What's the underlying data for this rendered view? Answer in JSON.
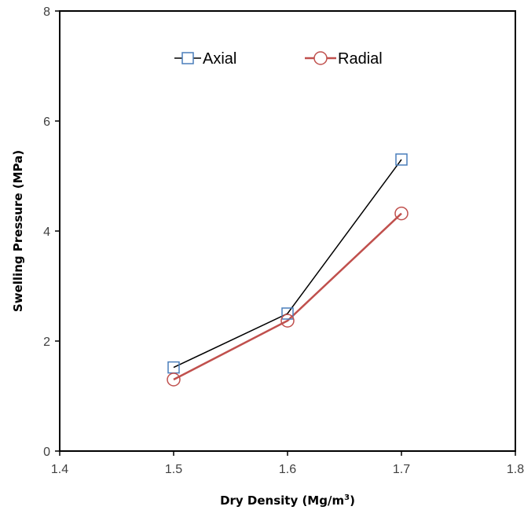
{
  "chart_data": {
    "type": "line",
    "title": "",
    "xlabel": "Dry Density (Mg/m",
    "xlabel_superscript": "3",
    "xlabel_suffix": ")",
    "ylabel": "Swelling Pressure (MPa)",
    "xlim": [
      1.4,
      1.8
    ],
    "ylim": [
      0,
      8
    ],
    "xticks": [
      "1.4",
      "1.5",
      "1.6",
      "1.7",
      "1.8"
    ],
    "yticks": [
      "0",
      "2",
      "4",
      "6",
      "8"
    ],
    "grid": false,
    "legend_position": "top-center",
    "series": [
      {
        "name": "Axial",
        "x": [
          1.5,
          1.6,
          1.7
        ],
        "y": [
          1.52,
          2.5,
          5.3
        ],
        "line_color": "#000000",
        "marker": "square",
        "marker_color": "#4a7ebb"
      },
      {
        "name": "Radial",
        "x": [
          1.5,
          1.6,
          1.7
        ],
        "y": [
          1.3,
          2.37,
          4.32
        ],
        "line_color": "#c0504d",
        "marker": "circle",
        "marker_color": "#c0504d"
      }
    ]
  }
}
